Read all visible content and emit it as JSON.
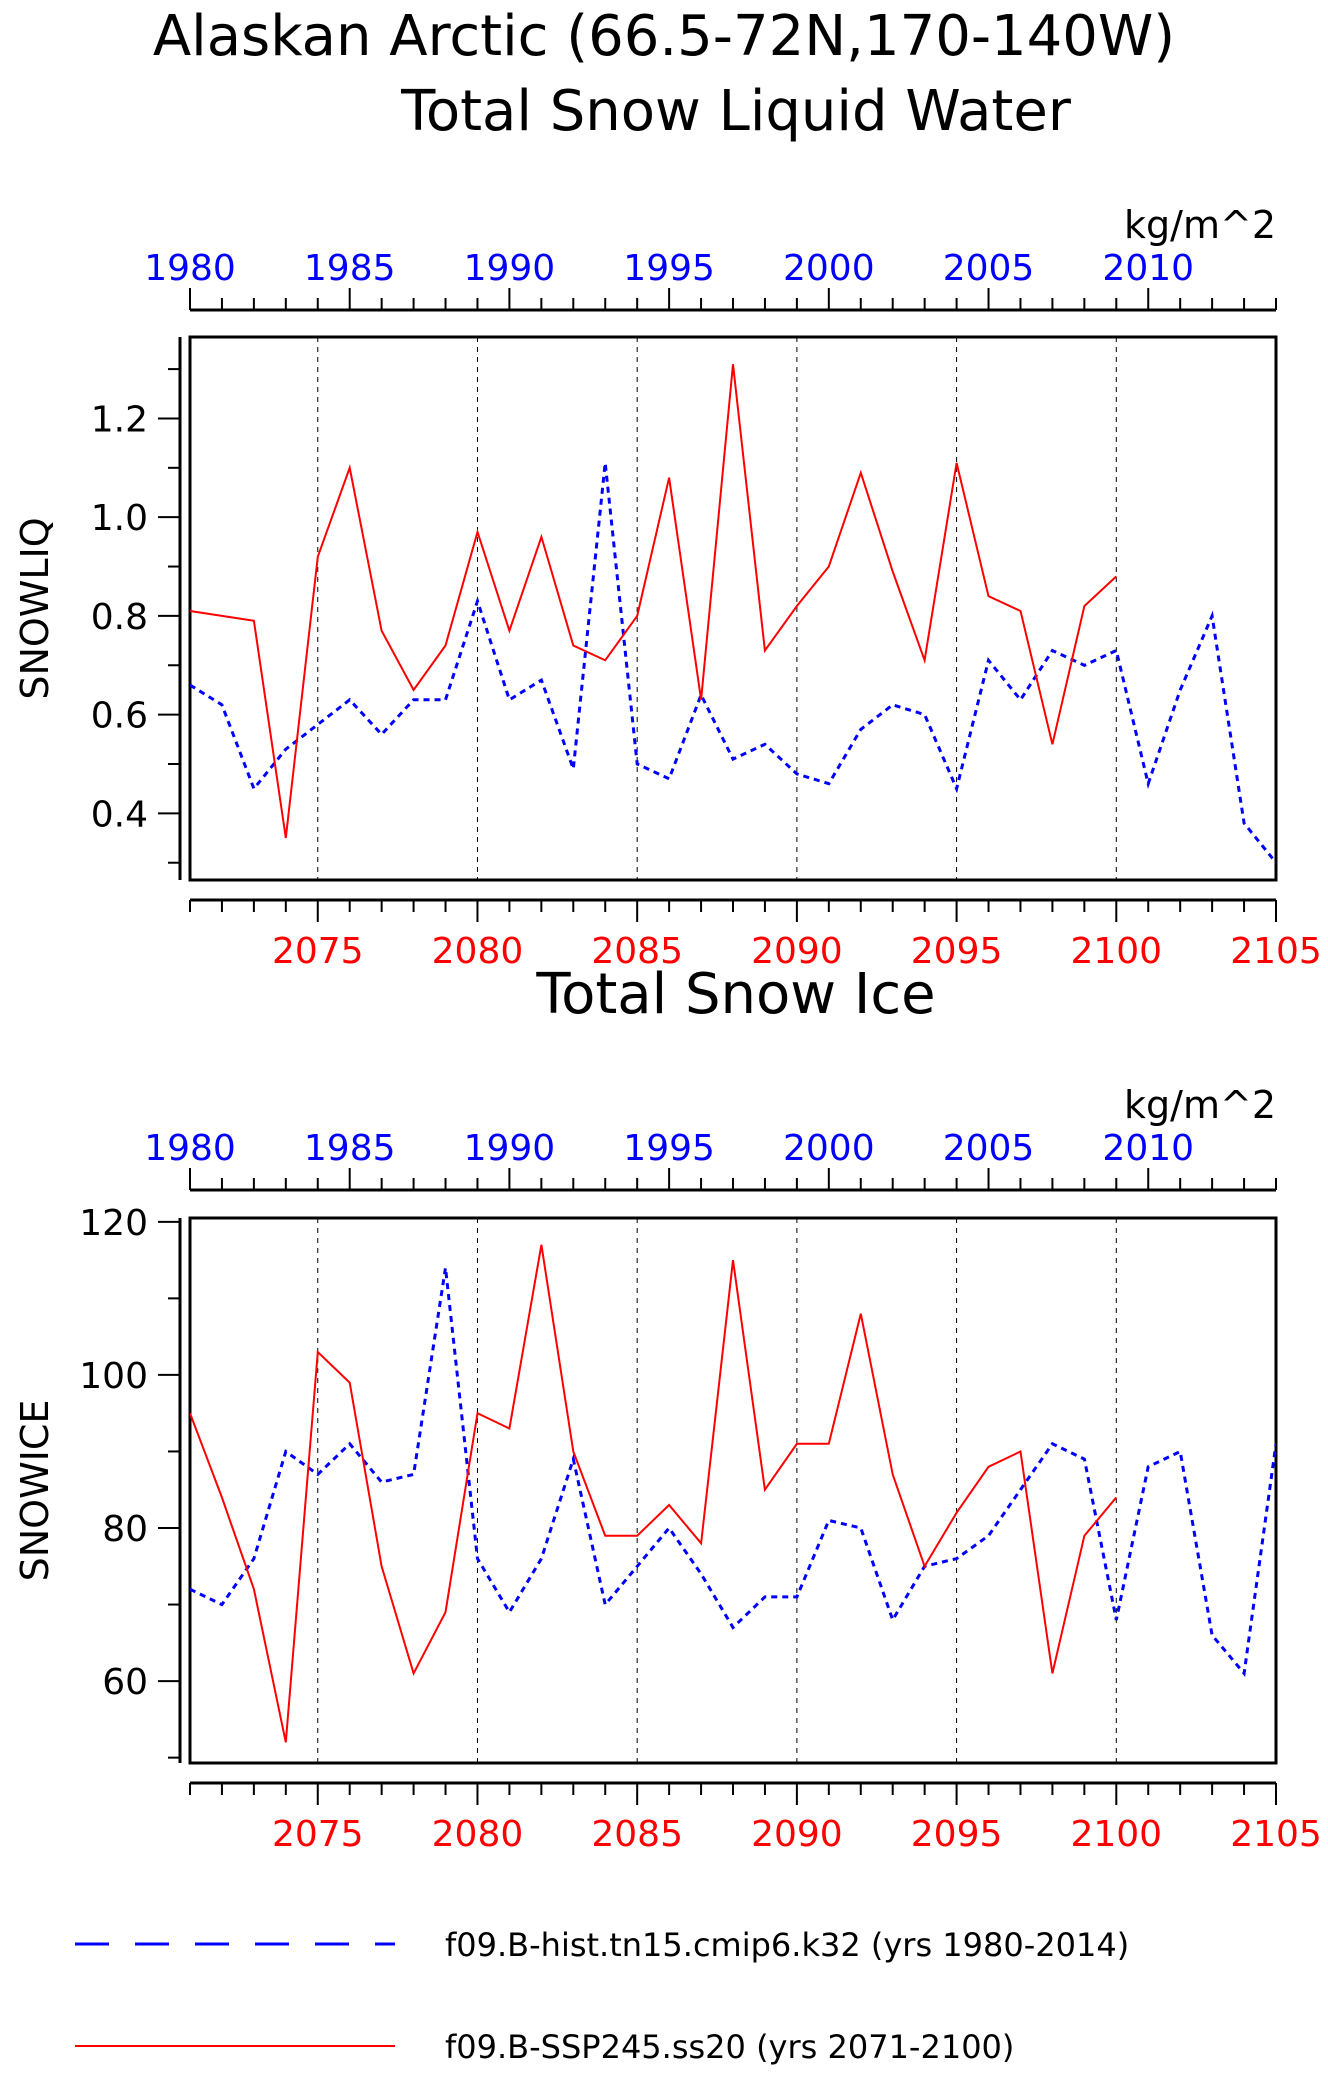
{
  "title_line1": "Alaskan Arctic (66.5-72N,170-140W)",
  "colors": {
    "hist": "#0000ff",
    "ssp": "#ff0000",
    "axis": "#000000"
  },
  "legend": {
    "hist_label": "f09.B-hist.tn15.cmip6.k32 (yrs 1980-2014)",
    "ssp_label": "f09.B-SSP245.ss20 (yrs 2071-2100)"
  },
  "chart_data": [
    {
      "type": "line",
      "title": "Total Snow Liquid Water",
      "units": "kg/m^2",
      "ylabel": "SNOWLIQ",
      "ylim": [
        0.265,
        1.365
      ],
      "yticks": [
        0.4,
        0.6,
        0.8,
        1.0,
        1.2
      ],
      "ytick_labels": [
        "0.4",
        "0.6",
        "0.8",
        "1.0",
        "1.2"
      ],
      "bottom_axis": {
        "range": [
          2071,
          2105
        ],
        "ticks": [
          2075,
          2080,
          2085,
          2090,
          2095,
          2100,
          2105
        ]
      },
      "top_axis": {
        "range": [
          1980,
          2014
        ],
        "ticks": [
          1980,
          1985,
          1990,
          1995,
          2000,
          2005,
          2010
        ]
      },
      "grid_x": [
        2075,
        2080,
        2085,
        2090,
        2095,
        2100
      ],
      "series": [
        {
          "name": "f09.B-hist.tn15.cmip6.k32 (yrs 1980-2014)",
          "style": "dashed",
          "x": [
            1980,
            1981,
            1982,
            1983,
            1984,
            1985,
            1986,
            1987,
            1988,
            1989,
            1990,
            1991,
            1992,
            1993,
            1994,
            1995,
            1996,
            1997,
            1998,
            1999,
            2000,
            2001,
            2002,
            2003,
            2004,
            2005,
            2006,
            2007,
            2008,
            2009,
            2010,
            2011,
            2012,
            2013,
            2014
          ],
          "values": [
            0.66,
            0.62,
            0.45,
            0.53,
            0.58,
            0.63,
            0.56,
            0.63,
            0.63,
            0.83,
            0.63,
            0.67,
            0.49,
            1.11,
            0.5,
            0.47,
            0.64,
            0.51,
            0.54,
            0.48,
            0.46,
            0.57,
            0.62,
            0.6,
            0.45,
            0.71,
            0.63,
            0.73,
            0.7,
            0.73,
            0.46,
            0.65,
            0.8,
            0.38,
            0.3
          ]
        },
        {
          "name": "f09.B-SSP245.ss20 (yrs 2071-2100)",
          "style": "solid",
          "x": [
            2071,
            2072,
            2073,
            2074,
            2075,
            2076,
            2077,
            2078,
            2079,
            2080,
            2081,
            2082,
            2083,
            2084,
            2085,
            2086,
            2087,
            2088,
            2089,
            2090,
            2091,
            2092,
            2093,
            2094,
            2095,
            2096,
            2097,
            2098,
            2099,
            2100
          ],
          "values": [
            0.81,
            0.8,
            0.79,
            0.35,
            0.92,
            1.1,
            0.77,
            0.65,
            0.74,
            0.97,
            0.77,
            0.96,
            0.74,
            0.71,
            0.8,
            1.08,
            0.63,
            1.31,
            0.73,
            0.82,
            0.9,
            1.09,
            0.89,
            0.71,
            1.11,
            0.84,
            0.81,
            0.54,
            0.82,
            0.88
          ]
        }
      ]
    },
    {
      "type": "line",
      "title": "Total Snow Ice",
      "units": "kg/m^2",
      "ylabel": "SNOWICE",
      "ylim": [
        49.3,
        120.5
      ],
      "yticks": [
        60,
        80,
        100,
        120
      ],
      "ytick_labels": [
        "60",
        "80",
        "100",
        "120"
      ],
      "bottom_axis": {
        "range": [
          2071,
          2105
        ],
        "ticks": [
          2075,
          2080,
          2085,
          2090,
          2095,
          2100,
          2105
        ]
      },
      "top_axis": {
        "range": [
          1980,
          2014
        ],
        "ticks": [
          1980,
          1985,
          1990,
          1995,
          2000,
          2005,
          2010
        ]
      },
      "grid_x": [
        2075,
        2080,
        2085,
        2090,
        2095,
        2100
      ],
      "series": [
        {
          "name": "f09.B-hist.tn15.cmip6.k32 (yrs 1980-2014)",
          "style": "dashed",
          "x": [
            1980,
            1981,
            1982,
            1983,
            1984,
            1985,
            1986,
            1987,
            1988,
            1989,
            1990,
            1991,
            1992,
            1993,
            1994,
            1995,
            1996,
            1997,
            1998,
            1999,
            2000,
            2001,
            2002,
            2003,
            2004,
            2005,
            2006,
            2007,
            2008,
            2009,
            2010,
            2011,
            2012,
            2013,
            2014
          ],
          "values": [
            72,
            70,
            76,
            90,
            87,
            91,
            86,
            87,
            114,
            76,
            69,
            76,
            89,
            70,
            75,
            80,
            74,
            67,
            71,
            71,
            81,
            80,
            68,
            75,
            76,
            79,
            85,
            91,
            89,
            68,
            88,
            90,
            66,
            61,
            91
          ]
        },
        {
          "name": "f09.B-SSP245.ss20 (yrs 2071-2100)",
          "style": "solid",
          "x": [
            2071,
            2072,
            2073,
            2074,
            2075,
            2076,
            2077,
            2078,
            2079,
            2080,
            2081,
            2082,
            2083,
            2084,
            2085,
            2086,
            2087,
            2088,
            2089,
            2090,
            2091,
            2092,
            2093,
            2094,
            2095,
            2096,
            2097,
            2098,
            2099,
            2100
          ],
          "values": [
            95,
            84,
            72,
            52,
            103,
            99,
            75,
            61,
            69,
            95,
            93,
            117,
            90,
            79,
            79,
            83,
            78,
            115,
            85,
            91,
            91,
            108,
            87,
            75,
            82,
            88,
            90,
            61,
            79,
            84
          ]
        }
      ]
    }
  ]
}
